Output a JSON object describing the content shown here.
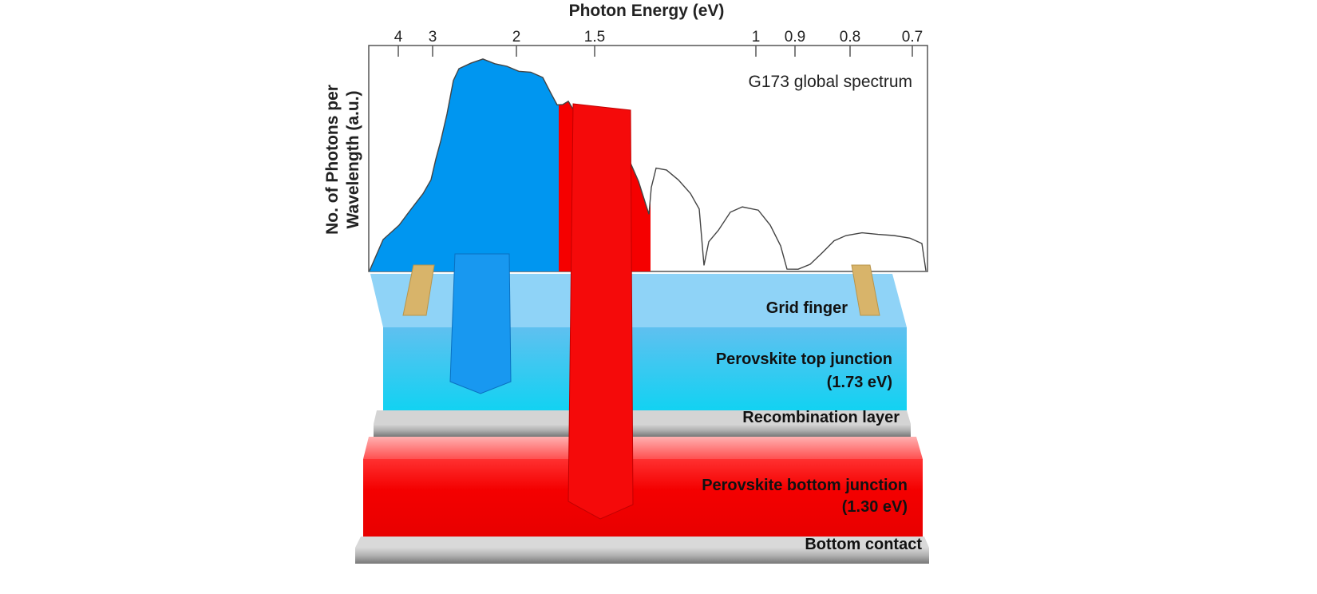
{
  "chart": {
    "top_axis_title": "Photon Energy (eV)",
    "y_axis_title_line1": "No. of Photons per",
    "y_axis_title_line2": "Wavelength (a.u.)",
    "top_ticks": [
      "4",
      "3",
      "2",
      "1.5",
      "1",
      "0.9",
      "0.8",
      "0.7"
    ],
    "annotation": "G173 global spectrum",
    "colors": {
      "top_junction_absorption": "#0096f0",
      "bottom_junction_absorption": "#f50000",
      "spectrum_line": "#444444"
    }
  },
  "layers": {
    "grid_finger": "Grid finger",
    "top_junction": "Perovskite top junction",
    "top_junction_gap": "(1.73 eV)",
    "recombination": "Recombination layer",
    "bottom_junction": "Perovskite bottom junction",
    "bottom_junction_gap": "(1.30 eV)",
    "bottom_contact": "Bottom contact"
  }
}
